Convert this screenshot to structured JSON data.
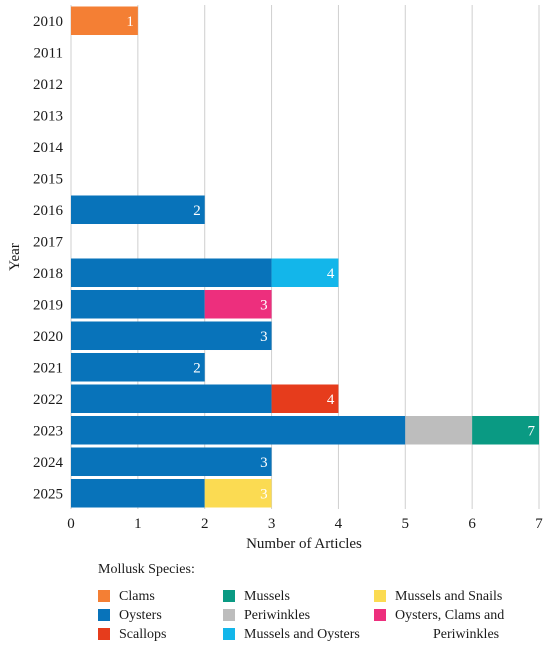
{
  "chart_data": {
    "type": "bar",
    "orientation": "horizontal",
    "stacked": true,
    "ylabel": "Year",
    "xlabel": "Number of Articles",
    "xlim": [
      0,
      7
    ],
    "x_ticks": [
      0,
      1,
      2,
      3,
      4,
      5,
      6,
      7
    ],
    "grid": "vertical",
    "categories": [
      "2010",
      "2011",
      "2012",
      "2013",
      "2014",
      "2015",
      "2016",
      "2017",
      "2018",
      "2019",
      "2020",
      "2021",
      "2022",
      "2023",
      "2024",
      "2025"
    ],
    "series": [
      {
        "name": "Clams",
        "color": "#F47F34",
        "values": [
          1,
          0,
          0,
          0,
          0,
          0,
          0,
          0,
          0,
          0,
          0,
          0,
          0,
          0,
          0,
          0
        ]
      },
      {
        "name": "Oysters",
        "color": "#0873BA",
        "values": [
          0,
          0,
          0,
          0,
          0,
          0,
          2,
          0,
          3,
          2,
          3,
          2,
          3,
          5,
          3,
          2
        ]
      },
      {
        "name": "Scallops",
        "color": "#E63C1C",
        "values": [
          0,
          0,
          0,
          0,
          0,
          0,
          0,
          0,
          0,
          0,
          0,
          0,
          1,
          0,
          0,
          0
        ]
      },
      {
        "name": "Mussels",
        "color": "#0A9A83",
        "values": [
          0,
          0,
          0,
          0,
          0,
          0,
          0,
          0,
          0,
          0,
          0,
          0,
          0,
          1,
          0,
          0
        ]
      },
      {
        "name": "Periwinkles",
        "color": "#BDBDBD",
        "values": [
          0,
          0,
          0,
          0,
          0,
          0,
          0,
          0,
          0,
          0,
          0,
          0,
          0,
          1,
          0,
          0
        ]
      },
      {
        "name": "Mussels and Oysters",
        "color": "#13B6EA",
        "values": [
          0,
          0,
          0,
          0,
          0,
          0,
          0,
          0,
          1,
          0,
          0,
          0,
          0,
          0,
          0,
          0
        ]
      },
      {
        "name": "Mussels and Snails",
        "color": "#FBDB52",
        "values": [
          0,
          0,
          0,
          0,
          0,
          0,
          0,
          0,
          0,
          0,
          0,
          0,
          0,
          0,
          0,
          1
        ]
      },
      {
        "name": "Oysters, Clams and Periwinkles",
        "color": "#ED2F7D",
        "values": [
          0,
          0,
          0,
          0,
          0,
          0,
          0,
          0,
          0,
          1,
          0,
          0,
          0,
          0,
          0,
          0
        ]
      }
    ],
    "stack_order": [
      "Clams",
      "Oysters",
      "Periwinkles",
      "Mussels",
      "Mussels and Oysters",
      "Mussels and Snails",
      "Scallops",
      "Oysters, Clams and Periwinkles"
    ],
    "total_labels": [
      "1",
      "",
      "",
      "",
      "",
      "",
      "2",
      "",
      "4",
      "3",
      "3",
      "2",
      "4",
      "7",
      "3",
      "3"
    ],
    "legend": {
      "title": "Mollusk Species:",
      "placement": "bottom",
      "columns": [
        [
          {
            "label": "Clams",
            "color": "#F47F34"
          },
          {
            "label": "Oysters",
            "color": "#0873BA"
          },
          {
            "label": "Scallops",
            "color": "#E63C1C"
          }
        ],
        [
          {
            "label": "Mussels",
            "color": "#0A9A83"
          },
          {
            "label": "Periwinkles",
            "color": "#BDBDBD"
          },
          {
            "label": "Mussels and Oysters",
            "color": "#13B6EA"
          }
        ],
        [
          {
            "label": "Mussels and Snails",
            "color": "#FBDB52"
          },
          {
            "label": "Oysters, Clams and",
            "label_line2": "Periwinkles",
            "color": "#ED2F7D"
          }
        ]
      ]
    }
  }
}
